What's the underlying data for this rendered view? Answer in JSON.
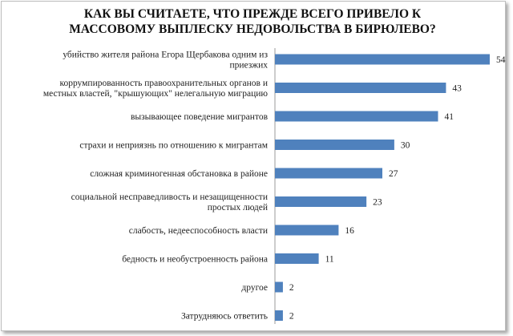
{
  "chart_data": {
    "type": "bar",
    "orientation": "horizontal",
    "title_lines": [
      "КАК ВЫ СЧИТАЕТЕ, ЧТО ПРЕЖДЕ ВСЕГО ПРИВЕЛО К",
      "МАССОВОМУ ВЫПЛЕСКУ НЕДОВОЛЬСТВА В БИРЮЛЕВО?"
    ],
    "categories": [
      [
        "убийство жителя района Егора Щербакова одним из",
        "приезжих"
      ],
      [
        "коррумпированность правоохранительных органов и",
        "местных властей, \"крышующих\"  нелегальную миграцию"
      ],
      [
        "вызывающее поведение мигрантов"
      ],
      [
        "страхи и  неприязнь по отношению к мигрантам"
      ],
      [
        "сложная криминогенная обстановка в районе"
      ],
      [
        "социальной несправедливость и незащищенности",
        "простых людей"
      ],
      [
        "слабость, недееспособность власти"
      ],
      [
        "бедность и необустроенность района"
      ],
      [
        "другое"
      ],
      [
        "Затрудняюсь ответить"
      ]
    ],
    "values": [
      54,
      43,
      41,
      30,
      27,
      23,
      16,
      11,
      2,
      2
    ],
    "xlim": [
      0,
      54
    ],
    "grid": false,
    "legend": "none",
    "bar_color": "#4f81bd"
  }
}
